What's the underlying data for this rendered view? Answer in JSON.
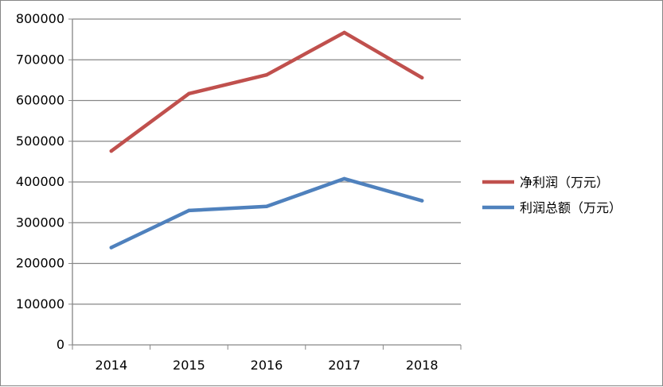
{
  "chart_data": {
    "type": "line",
    "categories": [
      "2014",
      "2015",
      "2016",
      "2017",
      "2018"
    ],
    "series": [
      {
        "name": "净利润（万元）",
        "color": "#C0504D",
        "values": [
          476000,
          617000,
          663000,
          767000,
          656000
        ]
      },
      {
        "name": "利润总额（万元）",
        "color": "#4F81BD",
        "values": [
          239000,
          330000,
          340000,
          408000,
          354000
        ]
      }
    ],
    "y_ticks": [
      "0",
      "100000",
      "200000",
      "300000",
      "400000",
      "500000",
      "600000",
      "700000",
      "800000"
    ],
    "ylim": [
      0,
      800000
    ],
    "grid": true,
    "legend_position": "right"
  }
}
